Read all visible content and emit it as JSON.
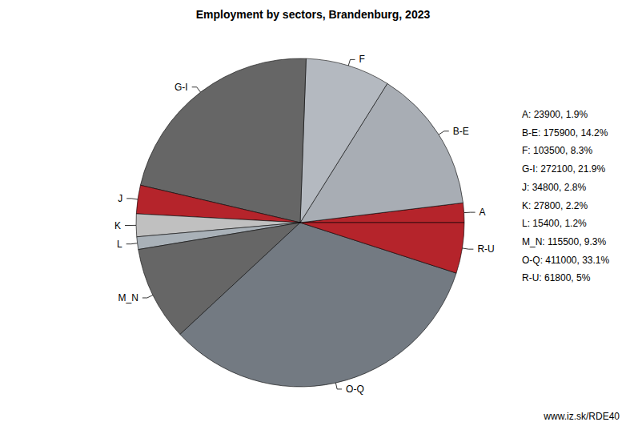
{
  "chart_data": {
    "type": "pie",
    "title": "Employment by sectors, Brandenburg, 2023",
    "categories": [
      "A",
      "B-E",
      "F",
      "G-I",
      "J",
      "K",
      "L",
      "M_N",
      "O-Q",
      "R-U"
    ],
    "values": [
      23900,
      175900,
      103500,
      272100,
      34800,
      27800,
      15400,
      115500,
      411000,
      61800
    ],
    "value_labels": [
      "A: 23900, 1.9%",
      "B-E: 175900, 14.2%",
      "F: 103500, 8.3%",
      "G-I: 272100, 21.9%",
      "J: 34800, 2.8%",
      "K: 27800, 2.2%",
      "L: 15400, 1.2%",
      "M_N: 115500, 9.3%",
      "O-Q: 411000, 33.1%",
      "R-U: 61800, 5%"
    ],
    "colors": [
      "#b5242b",
      "#a8adb4",
      "#b4b9c0",
      "#666666",
      "#b5242b",
      "#c0c0c0",
      "#a9b1b8",
      "#666666",
      "#737a82",
      "#b5242b"
    ],
    "source": "www.iz.sk/RDE40"
  }
}
